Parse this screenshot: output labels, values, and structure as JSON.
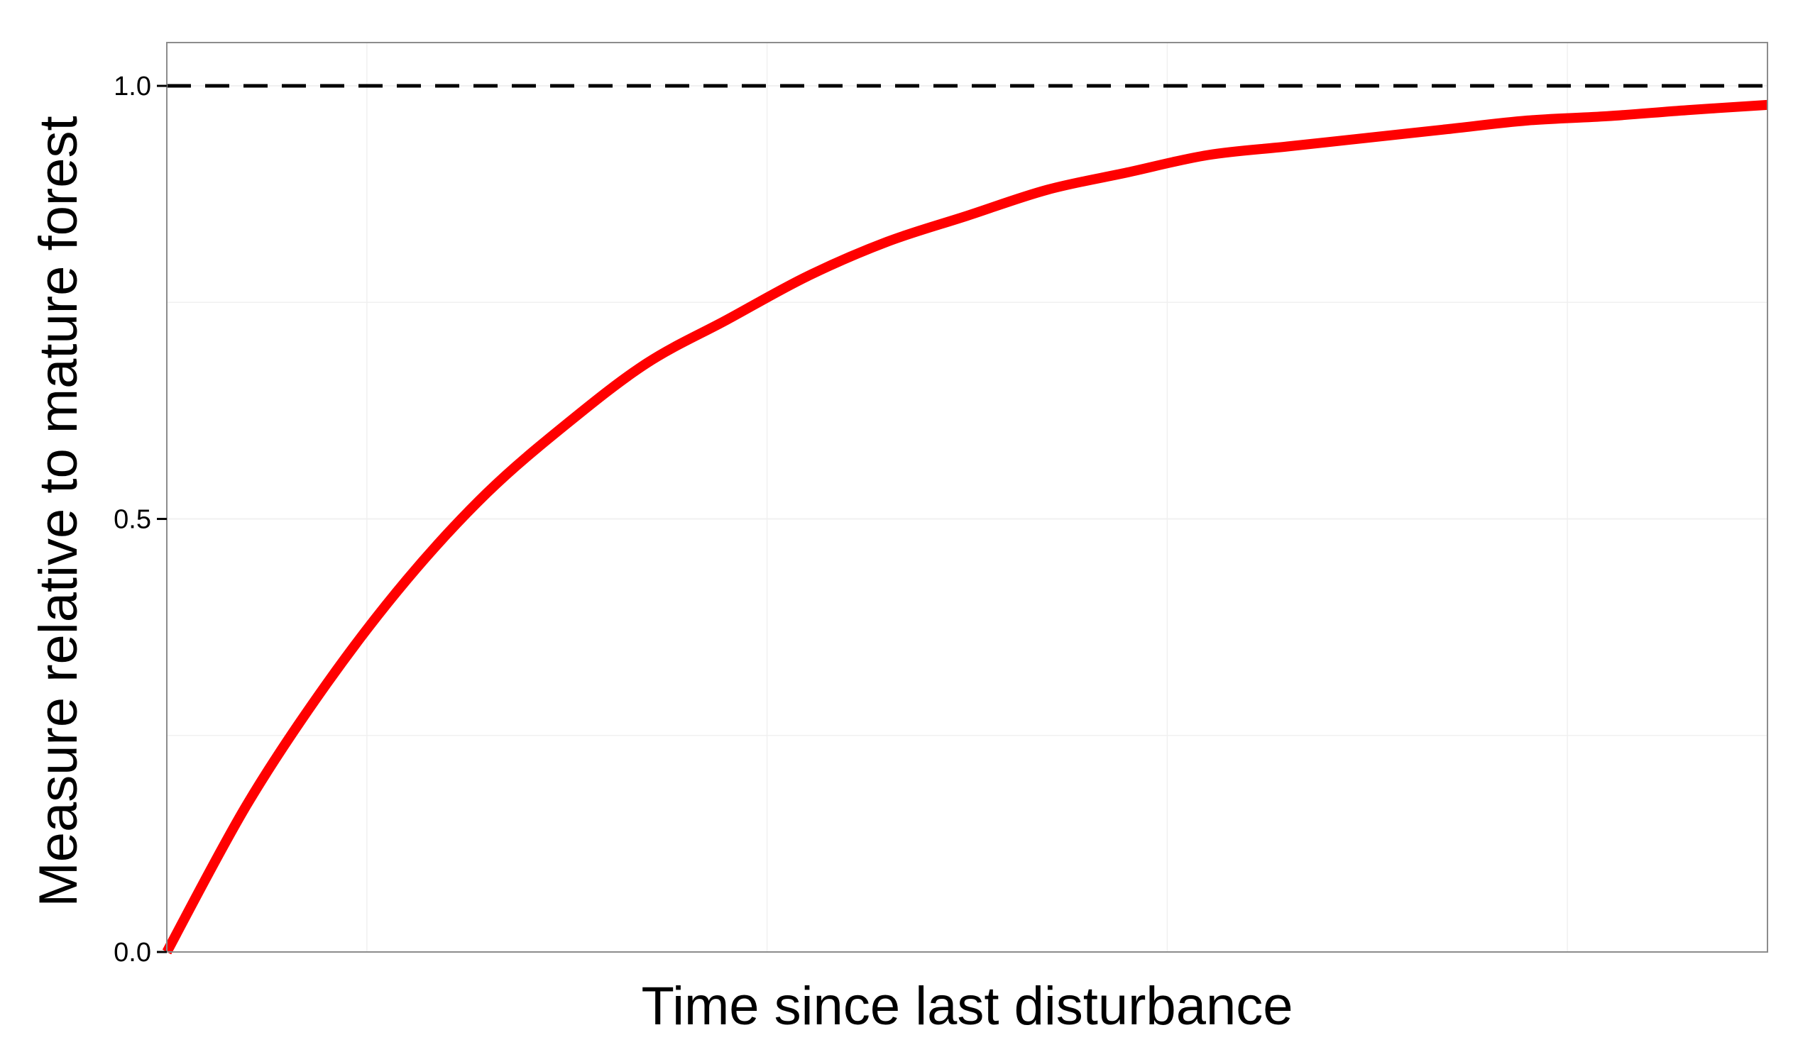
{
  "chart_data": {
    "type": "line",
    "title": "",
    "xlabel": "Time since last disturbance",
    "ylabel": "Measure relative to mature forest",
    "x_tick_labels_shown": false,
    "ylim": [
      0,
      1.05
    ],
    "xlim": [
      0,
      4
    ],
    "y_ticks": [
      {
        "value": 0.0,
        "label": "0.0"
      },
      {
        "value": 0.5,
        "label": "0.5"
      },
      {
        "value": 1.0,
        "label": "1.0"
      }
    ],
    "y_minor_gridlines": [
      0.25,
      0.75
    ],
    "x_gridlines": [
      0.5,
      1.5,
      2.5,
      3.5
    ],
    "grid": true,
    "reference_lines": [
      {
        "y": 1.0,
        "style": "dashed",
        "color": "#000000"
      }
    ],
    "series": [
      {
        "color": "#ff0000",
        "x": [
          0,
          0.2,
          0.4,
          0.6,
          0.8,
          1.0,
          1.2,
          1.4,
          1.6,
          1.8,
          2.0,
          2.2,
          2.4,
          2.6,
          2.8,
          3.0,
          3.2,
          3.4,
          3.6,
          3.8,
          4.0
        ],
        "y": [
          0.0,
          0.17,
          0.31,
          0.43,
          0.53,
          0.61,
          0.68,
          0.73,
          0.78,
          0.82,
          0.85,
          0.88,
          0.9,
          0.92,
          0.93,
          0.94,
          0.95,
          0.96,
          0.965,
          0.972,
          0.978
        ]
      }
    ]
  },
  "colors": {
    "background": "#ffffff",
    "panel_border": "#8c8c8c",
    "grid": "#f0f0f0",
    "curve": "#ff0000",
    "reference": "#000000"
  }
}
